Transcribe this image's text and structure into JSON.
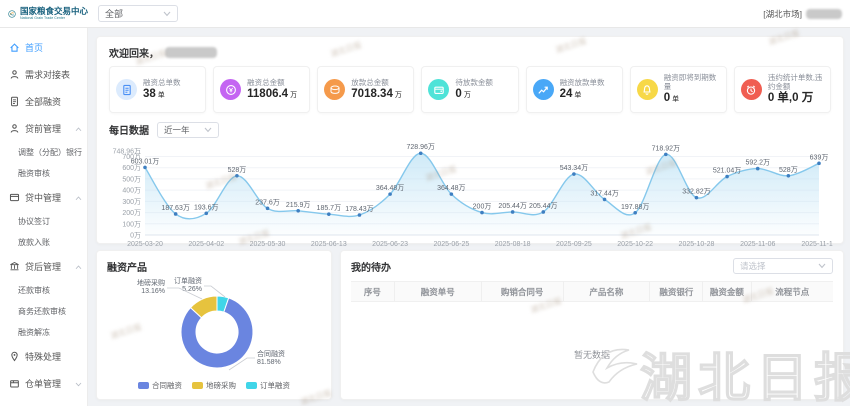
{
  "header": {
    "logo_title": "国家粮食交易中心",
    "logo_subtitle": "National Grain Trade Center",
    "market_select_value": "全部",
    "market_tag": "[湖北市场]"
  },
  "sidebar": {
    "items": [
      {
        "label": "首页",
        "icon": "home-icon",
        "active": true
      },
      {
        "label": "需求对接表",
        "icon": "people-icon"
      },
      {
        "label": "全部融资",
        "icon": "invoice-icon"
      },
      {
        "label": "贷前管理",
        "icon": "user-icon",
        "group": true,
        "expanded": true
      },
      {
        "label": "调整（分配）银行",
        "sub": true
      },
      {
        "label": "融资审核",
        "sub": true
      },
      {
        "label": "贷中管理",
        "icon": "card-icon",
        "group": true,
        "expanded": true
      },
      {
        "label": "协议签订",
        "sub": true
      },
      {
        "label": "放款入账",
        "sub": true
      },
      {
        "label": "贷后管理",
        "icon": "bank-icon",
        "group": true,
        "expanded": true
      },
      {
        "label": "还款审核",
        "sub": true
      },
      {
        "label": "商务还款审核",
        "sub": true
      },
      {
        "label": "融资解冻",
        "sub": true
      },
      {
        "label": "特殊处理",
        "icon": "pin-icon"
      },
      {
        "label": "仓单管理",
        "icon": "box-icon",
        "group": true,
        "expanded": false
      }
    ]
  },
  "main": {
    "welcome_prefix": "欢迎回来，",
    "stat_cards": [
      {
        "title": "融资总单数",
        "value": "38",
        "unit": "单",
        "icon": "invoice-icon",
        "icon_bg": "#dcebfd",
        "icon_color": "#4a90f5"
      },
      {
        "title": "融资总金额",
        "value": "11806.4",
        "unit": "万",
        "icon": "money-icon",
        "icon_bg": "#c465f2",
        "icon_color": "#ffffff"
      },
      {
        "title": "放款总金额",
        "value": "7018.34",
        "unit": "万",
        "icon": "coin-icon",
        "icon_bg": "#f59a4b",
        "icon_color": "#ffffff"
      },
      {
        "title": "待放款金额",
        "value": "0",
        "unit": "万",
        "icon": "wallet-icon",
        "icon_bg": "#4fe3d8",
        "icon_color": "#ffffff"
      },
      {
        "title": "融资放款单数",
        "value": "24",
        "unit": "单",
        "icon": "trend-icon",
        "icon_bg": "#49a8f7",
        "icon_color": "#ffffff"
      },
      {
        "title": "融资即将到期数量",
        "value": "0",
        "unit": "单",
        "icon": "bell-icon",
        "icon_bg": "#f7d847",
        "icon_color": "#ffffff"
      },
      {
        "title": "违约统计单数,违约金额",
        "value": "0 单,0 万",
        "unit": "",
        "icon": "alarm-icon",
        "icon_bg": "#f05e52",
        "icon_color": "#ffffff"
      }
    ]
  },
  "chart_data": [
    {
      "type": "area",
      "title": "每日数据",
      "range_selector": "近一年",
      "values": [
        603.01,
        187.63,
        193.6,
        528,
        237.6,
        215.9,
        185.7,
        178.43,
        364.48,
        728.96,
        364.48,
        200,
        205.44,
        205.44,
        543.34,
        317.44,
        197.88,
        718.92,
        332.82,
        521.04,
        592.2,
        528,
        639
      ],
      "unit": "万",
      "x_ticks": [
        "2025-03-20",
        "2025-04-02",
        "2025-05-30",
        "2025-06-13",
        "2025-06-23",
        "2025-06-25",
        "2025-08-18",
        "2025-09-25",
        "2025-10-22",
        "2025-10-28",
        "2025-11-06",
        "2025-11-18"
      ],
      "y_ticks": [
        0,
        100,
        200,
        300,
        400,
        500,
        600,
        700
      ],
      "y_max": 748.96,
      "y_max_label": "748.96万",
      "ylim": [
        0,
        748.96
      ],
      "line_color": "#85c8ec",
      "dot_color": "#3e7fc1",
      "area_color": "#bfe3f5",
      "grid": true
    },
    {
      "type": "pie",
      "title": "融资产品",
      "slices": [
        {
          "name": "合同融资",
          "pct": 81.58,
          "label": "合同融资",
          "pct_label": "81.58%",
          "color": "#6a85e0"
        },
        {
          "name": "地磅采购",
          "pct": 13.16,
          "label": "地磅采购",
          "pct_label": "13.16%",
          "color": "#e6c33e"
        },
        {
          "name": "订单融资",
          "pct": 5.26,
          "label": "订单融资",
          "pct_label": "5.26%",
          "color": "#40d5e8"
        }
      ],
      "legend": [
        "合同融资",
        "地磅采购",
        "订单融资"
      ],
      "legend_position": "bottom"
    }
  ],
  "todo": {
    "title": "我的待办",
    "filter_placeholder": "请选择",
    "columns": [
      "序号",
      "融资单号",
      "购销合同号",
      "产品名称",
      "融资银行",
      "融资金额",
      "流程节点"
    ],
    "empty_text": "暂无数据"
  },
  "watermark": {
    "text": "湖北日报"
  }
}
